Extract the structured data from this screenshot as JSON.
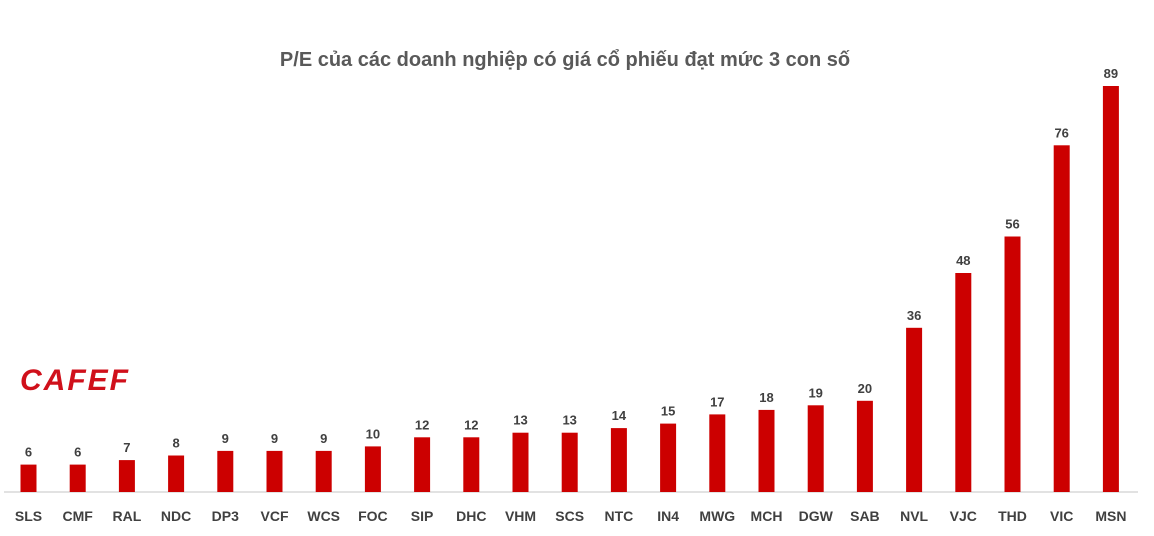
{
  "logo": {
    "text": "CAFEF"
  },
  "chart_data": {
    "type": "bar",
    "title": "P/E của các doanh nghiệp có giá cổ phiếu đạt mức 3 con số",
    "xlabel": "",
    "ylabel": "",
    "categories": [
      "SLS",
      "CMF",
      "RAL",
      "NDC",
      "DP3",
      "VCF",
      "WCS",
      "FOC",
      "SIP",
      "DHC",
      "VHM",
      "SCS",
      "NTC",
      "IN4",
      "MWG",
      "MCH",
      "DGW",
      "SAB",
      "NVL",
      "VJC",
      "THD",
      "VIC",
      "MSN"
    ],
    "values": [
      6,
      6,
      7,
      8,
      9,
      9,
      9,
      10,
      12,
      12,
      13,
      13,
      14,
      15,
      17,
      18,
      19,
      20,
      36,
      48,
      56,
      76,
      89
    ],
    "ylim": [
      0,
      89
    ],
    "bar_color": "#cc0000",
    "axis_color": "#d9d9d9",
    "grid": false,
    "legend": "none",
    "data_labels": true
  }
}
